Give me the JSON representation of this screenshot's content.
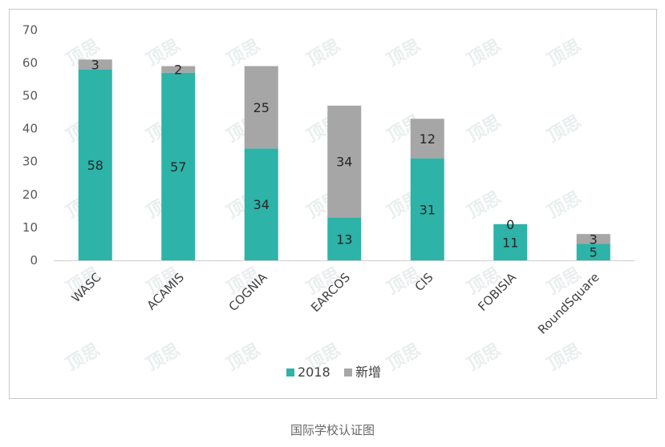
{
  "chart_data": {
    "type": "bar",
    "stacked": true,
    "categories": [
      "WASC",
      "ACAMIS",
      "COGNIA",
      "EARCOS",
      "CIS",
      "FOBISIA",
      "RoundSquare"
    ],
    "series": [
      {
        "name": "2018",
        "values": [
          58,
          57,
          34,
          13,
          31,
          11,
          5
        ],
        "color": "#2db3a8"
      },
      {
        "name": "新增",
        "values": [
          3,
          2,
          25,
          34,
          12,
          0,
          3
        ],
        "color": "#a6a6a6"
      }
    ],
    "yticks": [
      "0",
      "10",
      "20",
      "30",
      "40",
      "50",
      "60",
      "70"
    ],
    "ylim": [
      0,
      70
    ],
    "grid": false,
    "legend_position": "bottom",
    "watermark": "顶思"
  },
  "caption": "国际学校认证图"
}
